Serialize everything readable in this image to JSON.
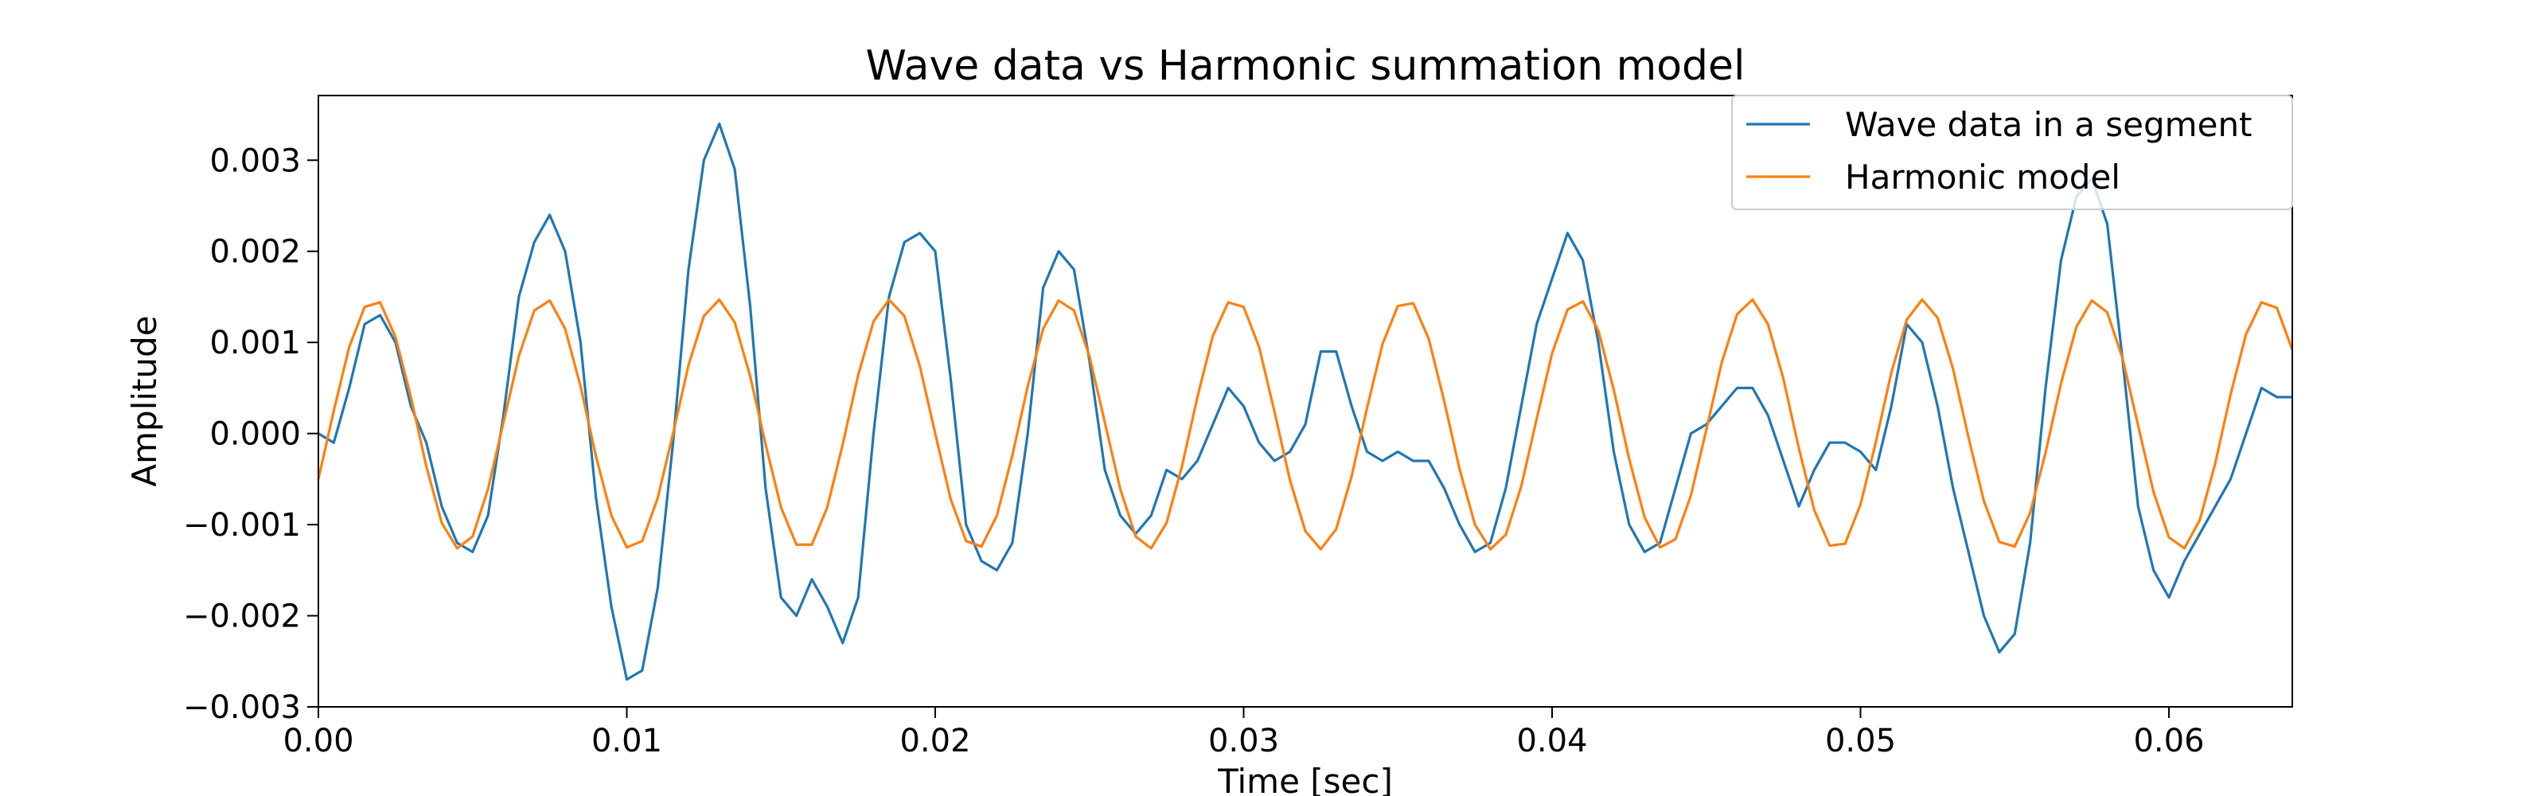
{
  "chart_data": {
    "type": "line",
    "title": "Wave data vs Harmonic summation model",
    "xlabel": "Time [sec]",
    "ylabel": "Amplitude",
    "xlim": [
      0,
      0.064
    ],
    "ylim": [
      -0.003,
      0.00371
    ],
    "xticks": [
      {
        "value": 0,
        "label": "0.00"
      },
      {
        "value": 0.01,
        "label": "0.01"
      },
      {
        "value": 0.02,
        "label": "0.02"
      },
      {
        "value": 0.03,
        "label": "0.03"
      },
      {
        "value": 0.04,
        "label": "0.04"
      },
      {
        "value": 0.05,
        "label": "0.05"
      },
      {
        "value": 0.06,
        "label": "0.06"
      }
    ],
    "yticks": [
      {
        "value": -0.003,
        "label": "−0.003"
      },
      {
        "value": -0.002,
        "label": "−0.002"
      },
      {
        "value": -0.001,
        "label": "−0.001"
      },
      {
        "value": 0,
        "label": "0.000"
      },
      {
        "value": 0.001,
        "label": "0.001"
      },
      {
        "value": 0.002,
        "label": "0.002"
      },
      {
        "value": 0.003,
        "label": "0.003"
      }
    ],
    "grid": false,
    "legend": "upper right",
    "x": [
      0,
      0.0005,
      0.001,
      0.0015,
      0.002,
      0.0025,
      0.003,
      0.0035,
      0.004,
      0.0045,
      0.005,
      0.0055,
      0.006,
      0.0065,
      0.007,
      0.0075,
      0.008,
      0.0085,
      0.009,
      0.0095,
      0.01,
      0.0105,
      0.011,
      0.0115,
      0.012,
      0.0125,
      0.013,
      0.0135,
      0.014,
      0.0145,
      0.015,
      0.0155,
      0.016,
      0.0165,
      0.017,
      0.0175,
      0.018,
      0.0185,
      0.019,
      0.0195,
      0.02,
      0.0205,
      0.021,
      0.0215,
      0.022,
      0.0225,
      0.023,
      0.0235,
      0.024,
      0.0245,
      0.025,
      0.0255,
      0.026,
      0.0265,
      0.027,
      0.0275,
      0.028,
      0.0285,
      0.029,
      0.0295,
      0.03,
      0.0305,
      0.031,
      0.0315,
      0.032,
      0.0325,
      0.033,
      0.0335,
      0.034,
      0.0345,
      0.035,
      0.0355,
      0.036,
      0.0365,
      0.037,
      0.0375,
      0.038,
      0.0385,
      0.039,
      0.0395,
      0.04,
      0.0405,
      0.041,
      0.0415,
      0.042,
      0.0425,
      0.043,
      0.0435,
      0.044,
      0.0445,
      0.045,
      0.0455,
      0.046,
      0.0465,
      0.047,
      0.0475,
      0.048,
      0.0485,
      0.049,
      0.0495,
      0.05,
      0.0505,
      0.051,
      0.0515,
      0.052,
      0.0525,
      0.053,
      0.0535,
      0.054,
      0.0545,
      0.055,
      0.0555,
      0.056,
      0.0565,
      0.057,
      0.0575,
      0.058,
      0.0585,
      0.059,
      0.0595,
      0.06,
      0.0605,
      0.061,
      0.0615,
      0.062,
      0.0625,
      0.063,
      0.0635,
      0.064
    ],
    "series": [
      {
        "name": "Wave data in a segment",
        "color": "#1f77b4",
        "values": [
          0,
          -0.0001,
          0.0005,
          0.0012,
          0.0013,
          0.001,
          0.0003,
          -0.0001,
          -0.0008,
          -0.0012,
          -0.0013,
          -0.0009,
          0.0002,
          0.0015,
          0.0021,
          0.0024,
          0.002,
          0.001,
          -0.0007,
          -0.0019,
          -0.0027,
          -0.0026,
          -0.0017,
          -0.0001,
          0.0018,
          0.003,
          0.0034,
          0.0029,
          0.0014,
          -0.0006,
          -0.0018,
          -0.002,
          -0.0016,
          -0.0019,
          -0.0023,
          -0.0018,
          0,
          0.0015,
          0.0021,
          0.0022,
          0.002,
          0.0006,
          -0.001,
          -0.0014,
          -0.0015,
          -0.0012,
          0,
          0.0016,
          0.002,
          0.0018,
          0.0008,
          -0.0004,
          -0.0009,
          -0.0011,
          -0.0009,
          -0.0004,
          -0.0005,
          -0.0003,
          0.0001,
          0.0005,
          0.0003,
          -0.0001,
          -0.0003,
          -0.0002,
          0.0001,
          0.0009,
          0.0009,
          0.0003,
          -0.0002,
          -0.0003,
          -0.0002,
          -0.0003,
          -0.0003,
          -0.0006,
          -0.001,
          -0.0013,
          -0.0012,
          -0.0006,
          0.0003,
          0.0012,
          0.0017,
          0.0022,
          0.0019,
          0.001,
          -0.0002,
          -0.001,
          -0.0013,
          -0.0012,
          -0.0006,
          0,
          0.0001,
          0.0003,
          0.0005,
          0.0005,
          0.0002,
          -0.0003,
          -0.0008,
          -0.0004,
          -0.0001,
          -0.0001,
          -0.0002,
          -0.0004,
          0.0003,
          0.0012,
          0.001,
          0.0003,
          -0.0006,
          -0.0013,
          -0.002,
          -0.0024,
          -0.0022,
          -0.0012,
          0.0005,
          0.0019,
          0.0026,
          0.0028,
          0.0023,
          0.0008,
          -0.0008,
          -0.0015,
          -0.0018,
          -0.0014,
          -0.0011,
          -0.0008,
          -0.0005,
          0,
          0.0005,
          0.0004,
          0.0004
        ]
      },
      {
        "name": "Harmonic model",
        "color": "#ff7f0e",
        "values": [
          -0.0005,
          0.00025,
          0.00095,
          0.00139,
          0.00144,
          0.00106,
          0.0004,
          -0.00036,
          -0.00098,
          -0.00126,
          -0.00113,
          -0.00061,
          0.00012,
          0.00085,
          0.00135,
          0.00146,
          0.00115,
          0.00052,
          -0.00025,
          -0.0009,
          -0.00125,
          -0.00118,
          -0.00071,
          0,
          0.00075,
          0.00129,
          0.00147,
          0.00122,
          0.00063,
          -0.00012,
          -0.00081,
          -0.00122,
          -0.00122,
          -0.00081,
          -0.00012,
          0.00064,
          0.00123,
          0.00147,
          0.00129,
          0.00074,
          0,
          -0.00072,
          -0.00118,
          -0.00124,
          -0.0009,
          -0.00024,
          0.00052,
          0.00115,
          0.00146,
          0.00135,
          0.00085,
          0.00012,
          -0.00061,
          -0.00113,
          -0.00126,
          -0.00098,
          -0.00036,
          0.0004,
          0.00107,
          0.00144,
          0.00139,
          0.00095,
          0.00024,
          -0.00051,
          -0.00107,
          -0.00127,
          -0.00105,
          -0.00047,
          0.00028,
          0.00098,
          0.0014,
          0.00143,
          0.00104,
          0.00036,
          -0.00039,
          -0.001,
          -0.00127,
          -0.00111,
          -0.00058,
          0.00016,
          0.00088,
          0.00136,
          0.00145,
          0.00113,
          0.00048,
          -0.00028,
          -0.00092,
          -0.00125,
          -0.00116,
          -0.00068,
          4e-05,
          0.00078,
          0.00131,
          0.00147,
          0.0012,
          0.0006,
          -0.00016,
          -0.00084,
          -0.00123,
          -0.00121,
          -0.00078,
          -9e-05,
          0.00067,
          0.00125,
          0.00147,
          0.00127,
          0.00071,
          -4e-05,
          -0.00074,
          -0.00119,
          -0.00124,
          -0.00087,
          -0.00021,
          0.00055,
          0.00117,
          0.00146,
          0.00133,
          0.00082,
          9e-05,
          -0.00064,
          -0.00114,
          -0.00126,
          -0.00095,
          -0.00033,
          0.00043,
          0.00109,
          0.00144,
          0.00138,
          0.00092
        ]
      }
    ]
  }
}
